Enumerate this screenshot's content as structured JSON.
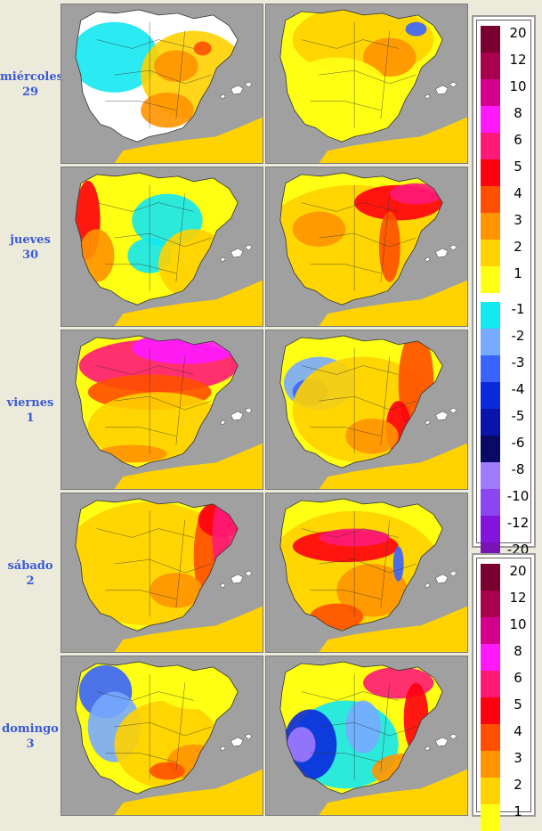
{
  "days": [
    {
      "name": "miércoles",
      "num": "29"
    },
    {
      "name": "jueves",
      "num": "30"
    },
    {
      "name": "viernes",
      "num": "1"
    },
    {
      "name": "sábado",
      "num": "2"
    },
    {
      "name": "domingo",
      "num": "3"
    }
  ],
  "colors": {
    "sea": "#a0a0a0",
    "land": "#ffffff",
    "border": "#333333"
  },
  "maps": [
    [
      {
        "theme": "cool"
      },
      {
        "theme": "warm-light"
      }
    ],
    [
      {
        "theme": "mixed-west"
      },
      {
        "theme": "warm-ne"
      }
    ],
    [
      {
        "theme": "hot-north"
      },
      {
        "theme": "cool-west"
      }
    ],
    [
      {
        "theme": "warm-east"
      },
      {
        "theme": "hot-center"
      }
    ],
    [
      {
        "theme": "cool-nw"
      },
      {
        "theme": "cold-sw"
      }
    ]
  ],
  "legend1": {
    "positive": [
      {
        "label": "20",
        "color": "#7a0030"
      },
      {
        "label": "12",
        "color": "#a8004c"
      },
      {
        "label": "10",
        "color": "#d2008c"
      },
      {
        "label": "8",
        "color": "#ff19ff"
      },
      {
        "label": "6",
        "color": "#ff1a78"
      },
      {
        "label": "5",
        "color": "#ff0010"
      },
      {
        "label": "4",
        "color": "#ff5000"
      },
      {
        "label": "3",
        "color": "#ff9400"
      },
      {
        "label": "2",
        "color": "#ffd200"
      },
      {
        "label": "1",
        "color": "#ffff14"
      }
    ],
    "negative": [
      {
        "label": "-1",
        "color": "#14e8f0"
      },
      {
        "label": "-2",
        "color": "#78aaff"
      },
      {
        "label": "-3",
        "color": "#3a64ff"
      },
      {
        "label": "-4",
        "color": "#0a28dc"
      },
      {
        "label": "-5",
        "color": "#0a14aa"
      },
      {
        "label": "-6",
        "color": "#0a0a64"
      },
      {
        "label": "-8",
        "color": "#a07aff"
      },
      {
        "label": "-10",
        "color": "#8c46f0"
      },
      {
        "label": "-12",
        "color": "#8214dc"
      },
      {
        "label": "-20",
        "color": "#7814b4"
      }
    ]
  },
  "legend2": {
    "positive": [
      {
        "label": "20",
        "color": "#7a0030"
      },
      {
        "label": "12",
        "color": "#a8004c"
      },
      {
        "label": "10",
        "color": "#d2008c"
      },
      {
        "label": "8",
        "color": "#ff19ff"
      },
      {
        "label": "6",
        "color": "#ff1a78"
      },
      {
        "label": "5",
        "color": "#ff0010"
      },
      {
        "label": "4",
        "color": "#ff5000"
      },
      {
        "label": "3",
        "color": "#ff9400"
      },
      {
        "label": "2",
        "color": "#ffd200"
      },
      {
        "label": "1",
        "color": "#ffff14"
      }
    ]
  }
}
